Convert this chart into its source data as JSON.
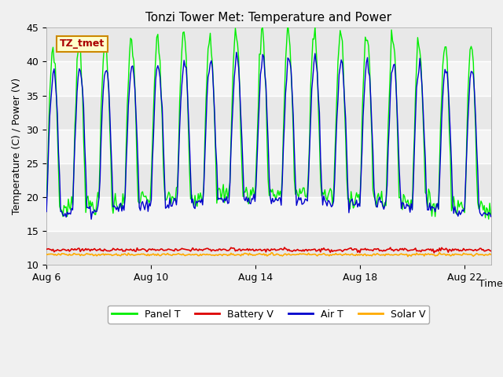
{
  "title": "Tonzi Tower Met: Temperature and Power",
  "ylabel": "Temperature (C) / Power (V)",
  "xlabel": "Time",
  "annotation": "TZ_tmet",
  "ylim": [
    10,
    45
  ],
  "x_ticks_labels": [
    "Aug 6",
    "Aug 10",
    "Aug 14",
    "Aug 18",
    "Aug 22"
  ],
  "x_ticks_positions": [
    0,
    4,
    8,
    12,
    16
  ],
  "legend_labels": [
    "Panel T",
    "Battery V",
    "Air T",
    "Solar V"
  ],
  "panel_t_color": "#00ee00",
  "battery_v_color": "#dd0000",
  "air_t_color": "#0000cc",
  "solar_v_color": "#ffaa00",
  "plot_bg_color": "#e8e8e8",
  "fig_bg_color": "#f0f0f0",
  "band_color": "#d0d0d0",
  "title_fontsize": 11,
  "axis_label_fontsize": 9,
  "tick_fontsize": 9,
  "n_days": 17
}
